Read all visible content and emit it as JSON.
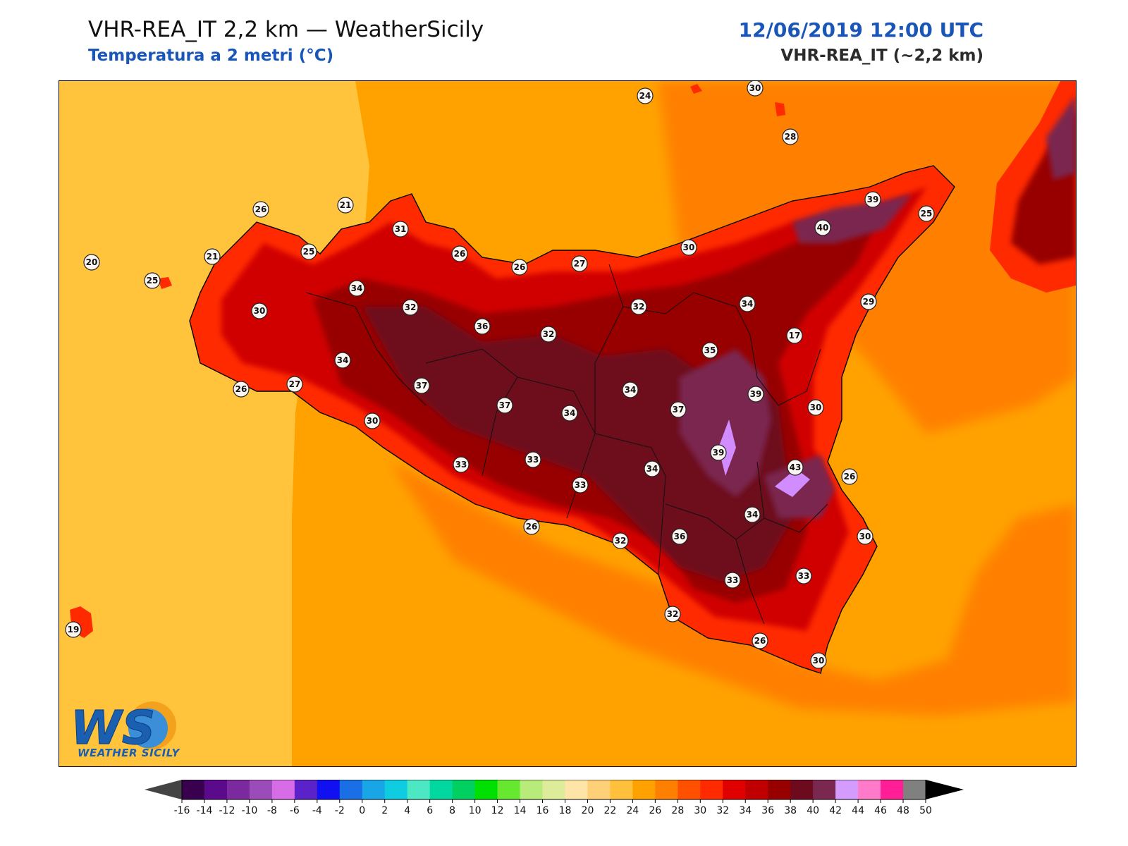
{
  "header": {
    "title": "VHR-REA_IT 2,2 km — WeatherSicily",
    "subtitle": "Temperatura a 2 metri (°C)",
    "datetime": "12/06/2019 12:00 UTC",
    "model": "VHR-REA_IT (~2,2 km)"
  },
  "logo": {
    "mark": "WS",
    "text": "WEATHER SICILY"
  },
  "colors": {
    "sea": "#ffa200",
    "sea_west": "#ffc43c",
    "coast_warm": "#ff8000",
    "land_low": "#ff2a00",
    "land_mid": "#d00000",
    "land_hot": "#980000",
    "land_hotter": "#6e0a1e",
    "land_max": "#7a2850",
    "peak": "#d18cff",
    "accent_blue": "#1a56b8"
  },
  "stations": [
    "30",
    "24",
    "28",
    "26",
    "21",
    "31",
    "20",
    "21",
    "25",
    "25",
    "34",
    "26",
    "26",
    "27",
    "30",
    "32",
    "30",
    "37",
    "39",
    "40",
    "25",
    "32",
    "34",
    "36",
    "32",
    "29",
    "17",
    "27",
    "34",
    "26",
    "37",
    "35",
    "37",
    "34",
    "39",
    "37",
    "34",
    "30",
    "30",
    "33",
    "33",
    "39",
    "43",
    "26",
    "33",
    "34",
    "34",
    "26",
    "32",
    "36",
    "30",
    "33",
    "33",
    "19",
    "32",
    "26",
    "30"
  ],
  "colorbar": {
    "ticks": [
      "-16",
      "-14",
      "-12",
      "-10",
      "-8",
      "-6",
      "-4",
      "-2",
      "0",
      "2",
      "4",
      "6",
      "8",
      "10",
      "12",
      "14",
      "16",
      "18",
      "20",
      "22",
      "24",
      "26",
      "28",
      "30",
      "32",
      "34",
      "36",
      "38",
      "40",
      "42",
      "44",
      "46",
      "48",
      "50"
    ],
    "colors": [
      "#3a0050",
      "#5a0a8a",
      "#7a2a9e",
      "#9c4cb8",
      "#d66ce6",
      "#5a22c8",
      "#1010f0",
      "#1a6ee6",
      "#18a6e6",
      "#10cce0",
      "#4ce8c4",
      "#00d8a0",
      "#00d060",
      "#00e000",
      "#66e830",
      "#b8ec7a",
      "#dcec9a",
      "#ffe4a8",
      "#ffd078",
      "#ffc03c",
      "#ffa200",
      "#ff8000",
      "#ff5000",
      "#ff2a00",
      "#e00000",
      "#c00000",
      "#980000",
      "#6e0a1e",
      "#7a2850",
      "#d49cff",
      "#ff7ac8",
      "#ff1e96",
      "#808080",
      "#3a3a3a"
    ],
    "under_color": "#444444",
    "over_color": "#000000"
  }
}
